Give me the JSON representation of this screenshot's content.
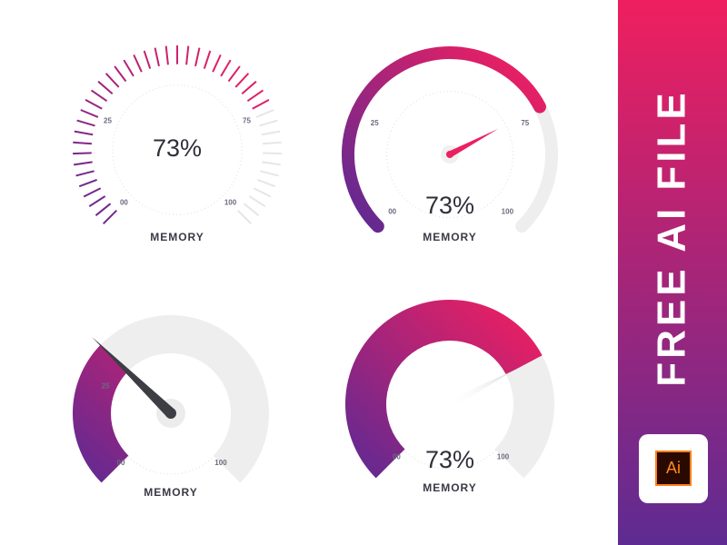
{
  "gauges": [
    {
      "style": "ticks",
      "value": 73,
      "value_label": "73%",
      "label": "MEMORY",
      "ticks": [
        {
          "value": 0,
          "label": "00"
        },
        25,
        75,
        100
      ]
    },
    {
      "style": "arc",
      "value": 73,
      "value_label": "73%",
      "label": "MEMORY",
      "ticks": [
        {
          "value": 0,
          "label": "00"
        },
        25,
        75,
        100
      ]
    },
    {
      "style": "needle-band",
      "value": 33,
      "label": "MEMORY",
      "ticks": [
        {
          "value": 0,
          "label": "00"
        },
        25,
        100
      ]
    },
    {
      "style": "band",
      "value": 73,
      "value_label": "73%",
      "label": "MEMORY",
      "ticks": [
        {
          "value": 0,
          "label": "00"
        },
        100
      ]
    }
  ],
  "colors": {
    "start": "#5b2a94",
    "end": "#ec1f62",
    "track": "#eeeeee"
  },
  "banner": {
    "title": "FREE AI FILE",
    "icon": "Ai"
  }
}
